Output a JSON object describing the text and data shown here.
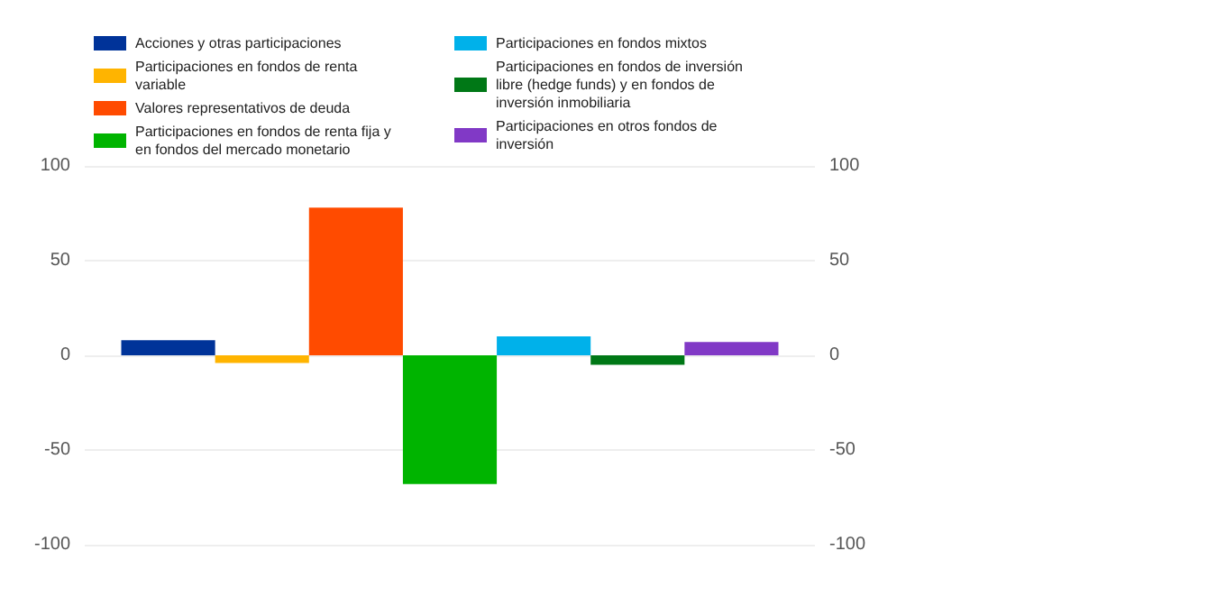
{
  "chart_data": {
    "type": "bar",
    "categories": [
      null
    ],
    "series": [
      {
        "name": "Acciones y otras participaciones",
        "color": "#003399",
        "values": [
          8
        ]
      },
      {
        "name": "Participaciones en fondos de renta variable",
        "color": "#ffb400",
        "values": [
          -4
        ]
      },
      {
        "name": "Valores representativos de deuda",
        "color": "#ff4b00",
        "values": [
          78
        ]
      },
      {
        "name": "Participaciones en fondos de renta fija y en fondos del mercado monetario",
        "color": "#00b400",
        "values": [
          -68
        ]
      },
      {
        "name": "Participaciones en fondos mixtos",
        "color": "#00b1ea",
        "values": [
          10
        ]
      },
      {
        "name": "Participaciones en fondos de inversión libre (hedge funds) y en fondos de inversión inmobiliaria",
        "color": "#007816",
        "values": [
          -5
        ]
      },
      {
        "name": "Participaciones en otros fondos de inversión",
        "color": "#8139c6",
        "values": [
          7
        ]
      }
    ],
    "ylim": [
      -100,
      100
    ],
    "yticks": [
      -100,
      -50,
      0,
      50,
      100
    ],
    "y2lim": [
      -100,
      100
    ],
    "y2ticks": [
      -100,
      -50,
      0,
      50,
      100
    ],
    "grid": "y",
    "legend": "top"
  }
}
